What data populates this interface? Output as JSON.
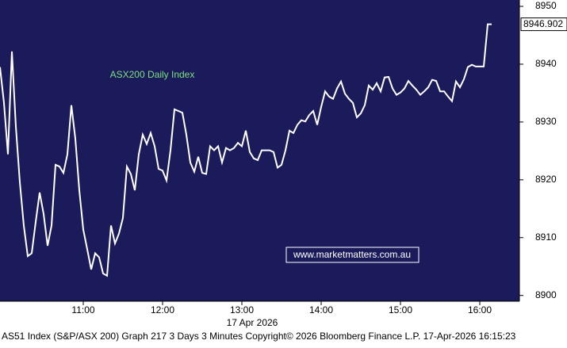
{
  "chart_data": {
    "type": "line",
    "annotations": [
      "ASX200 Daily Index",
      "www.marketmatters.com.au"
    ],
    "x_label": "17 Apr 2026",
    "footer": "AS51 Index (S&P/ASX 200) Graph 217 3 Days 3 Minutes Copyright© 2026 Bloomberg Finance L.P. 17-Apr-2026 16:15:23",
    "color": "#ffffff",
    "background": "#1b1b5c",
    "x": [
      597,
      600,
      603,
      606,
      609,
      612,
      615,
      618,
      621,
      624,
      627,
      630,
      633,
      636,
      639,
      642,
      645,
      648,
      651,
      654,
      657,
      660,
      663,
      666,
      669,
      672,
      675,
      678,
      681,
      684,
      687,
      690,
      693,
      696,
      699,
      702,
      705,
      708,
      711,
      714,
      717,
      720,
      723,
      726,
      729,
      732,
      735,
      738,
      741,
      744,
      747,
      750,
      753,
      756,
      759,
      762,
      765,
      768,
      771,
      774,
      777,
      780,
      783,
      786,
      789,
      792,
      795,
      798,
      801,
      804,
      807,
      810,
      813,
      816,
      819,
      822,
      825,
      828,
      831,
      834,
      837,
      840,
      843,
      846,
      849,
      852,
      855,
      858,
      861,
      864,
      867,
      870,
      873,
      876,
      879,
      882,
      885,
      888,
      891,
      894,
      897,
      900,
      903,
      906,
      909,
      912,
      915,
      918,
      921,
      924,
      927,
      930,
      933,
      936,
      939,
      942,
      945,
      948,
      951,
      954,
      957,
      960,
      963,
      966,
      969
    ],
    "values": [
      8939.5,
      8933.3,
      8924.4,
      8942.2,
      8929.2,
      8919.6,
      8912.1,
      8906.8,
      8907.3,
      8912.7,
      8917.8,
      8914.1,
      8908.6,
      8912.1,
      8922.6,
      8922.3,
      8921.2,
      8924.4,
      8932.9,
      8927.1,
      8918.2,
      8911.4,
      8908.0,
      8904.5,
      8907.3,
      8906.6,
      8903.8,
      8903.4,
      8912.1,
      8909.0,
      8910.7,
      8913.4,
      8922.3,
      8921.0,
      8918.2,
      8924.4,
      8927.8,
      8926.2,
      8928.1,
      8925.8,
      8921.9,
      8921.6,
      8919.9,
      8925.1,
      8932.2,
      8931.9,
      8931.6,
      8927.8,
      8923.0,
      8921.4,
      8924.0,
      8921.2,
      8921.0,
      8925.8,
      8925.1,
      8925.8,
      8923.0,
      8925.5,
      8925.1,
      8925.5,
      8926.4,
      8925.8,
      8928.5,
      8924.8,
      8923.7,
      8923.4,
      8925.1,
      8925.1,
      8925.1,
      8924.8,
      8922.1,
      8922.6,
      8925.1,
      8928.5,
      8928.1,
      8929.5,
      8930.3,
      8930.1,
      8931.2,
      8931.9,
      8929.5,
      8932.6,
      8935.3,
      8934.4,
      8934.0,
      8935.8,
      8937.0,
      8934.9,
      8934.0,
      8933.3,
      8930.8,
      8931.5,
      8932.9,
      8936.3,
      8935.6,
      8936.7,
      8935.3,
      8937.7,
      8937.8,
      8935.8,
      8934.7,
      8935.1,
      8935.8,
      8937.1,
      8936.3,
      8935.6,
      8934.7,
      8935.3,
      8936.0,
      8937.3,
      8937.1,
      8935.3,
      8935.3,
      8934.4,
      8933.6,
      8937.0,
      8936.0,
      8937.4,
      8939.5,
      8939.9,
      8939.6,
      8939.6,
      8939.6,
      8946.902,
      8946.902
    ],
    "xlim": [
      597,
      990
    ],
    "xticks": [
      {
        "value": 660,
        "label": "11:00"
      },
      {
        "value": 720,
        "label": "12:00"
      },
      {
        "value": 780,
        "label": "13:00"
      },
      {
        "value": 840,
        "label": "14:00"
      },
      {
        "value": 900,
        "label": "15:00"
      },
      {
        "value": 960,
        "label": "16:00"
      }
    ],
    "ylim": [
      8899,
      8951.1
    ],
    "yticks": [
      8900,
      8910,
      8920,
      8930,
      8940,
      8950
    ]
  }
}
